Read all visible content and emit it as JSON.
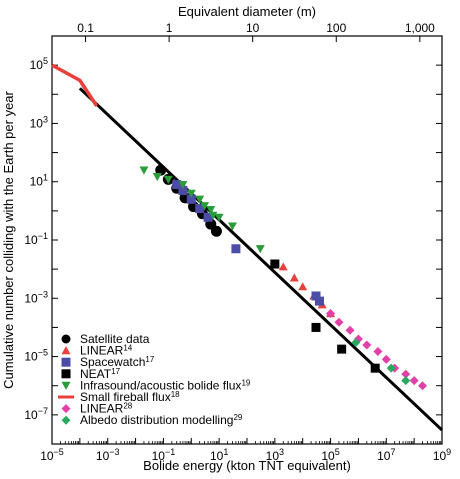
{
  "chart_data": {
    "type": "scatter",
    "xlabel": "Bolide energy (kton TNT equivalent)",
    "ylabel": "Cumulative number colliding with the Earth per year",
    "top_xlabel": "Equivalent diameter (m)",
    "xscale": "log",
    "yscale": "log",
    "xlim": [
      1e-05,
      1000000000.0
    ],
    "ylim": [
      1e-08,
      1000000.0
    ],
    "x_ticks": [
      {
        "value": 1e-05,
        "base": "10",
        "exp": "−5"
      },
      {
        "value": 0.001,
        "base": "10",
        "exp": "−3"
      },
      {
        "value": 0.1,
        "base": "10",
        "exp": "−1"
      },
      {
        "value": 10.0,
        "base": "10",
        "exp": "1"
      },
      {
        "value": 1000.0,
        "base": "10",
        "exp": "3"
      },
      {
        "value": 100000.0,
        "base": "10",
        "exp": "5"
      },
      {
        "value": 10000000.0,
        "base": "10",
        "exp": "7"
      },
      {
        "value": 1000000000.0,
        "base": "10",
        "exp": "9"
      }
    ],
    "y_ticks": [
      {
        "value": 100000.0,
        "base": "10",
        "exp": "5"
      },
      {
        "value": 1000.0,
        "base": "10",
        "exp": "3"
      },
      {
        "value": 10.0,
        "base": "10",
        "exp": "1"
      },
      {
        "value": 0.1,
        "base": "10",
        "exp": "−1"
      },
      {
        "value": 0.001,
        "base": "10",
        "exp": "−3"
      },
      {
        "value": 1e-05,
        "base": "10",
        "exp": "−5"
      },
      {
        "value": 1e-07,
        "base": "10",
        "exp": "−7"
      }
    ],
    "top_ticks": [
      {
        "label": "0.1",
        "energy": 0.00016
      },
      {
        "label": "1",
        "energy": 0.16
      },
      {
        "label": "10",
        "energy": 160
      },
      {
        "label": "100",
        "energy": 160000.0
      },
      {
        "label": "1,000",
        "energy": 160000000.0
      }
    ],
    "fit_line": {
      "x": [
        0.0001,
        1000000000.0
      ],
      "y": [
        16000.0,
        3e-08
      ]
    },
    "legend_position": "bottom-left",
    "series": [
      {
        "name": "Satellite data",
        "sup": "",
        "marker": "circle",
        "color": "#000000",
        "points": [
          [
            0.08,
            25
          ],
          [
            0.15,
            12
          ],
          [
            0.3,
            6
          ],
          [
            0.6,
            2.8
          ],
          [
            1.2,
            1.4
          ],
          [
            2.5,
            0.8
          ],
          [
            5,
            0.35
          ],
          [
            8,
            0.2
          ]
        ]
      },
      {
        "name": "LINEAR",
        "sup": "14",
        "marker": "triangle-up",
        "color": "#e8403a",
        "points": [
          [
            2000.0,
            0.012
          ],
          [
            5000.0,
            0.005
          ],
          [
            10000.0,
            0.0025
          ],
          [
            25000.0,
            0.0012
          ],
          [
            50000.0,
            0.0006
          ],
          [
            100000.0,
            0.0003
          ]
        ]
      },
      {
        "name": "Spacewatch",
        "sup": "17",
        "marker": "square",
        "color": "#4b4ba8",
        "points": [
          [
            0.3,
            8
          ],
          [
            0.5,
            5
          ],
          [
            1,
            2.5
          ],
          [
            2,
            1.2
          ],
          [
            4,
            0.6
          ],
          [
            40,
            0.05
          ],
          [
            30000.0,
            0.0012
          ],
          [
            40000.0,
            0.0008
          ]
        ]
      },
      {
        "name": "NEAT",
        "sup": "17",
        "marker": "square",
        "color": "#000000",
        "points": [
          [
            1000.0,
            0.015
          ],
          [
            30000.0,
            0.0001
          ],
          [
            250000.0,
            1.8e-05
          ],
          [
            4000000.0,
            4e-06
          ]
        ]
      },
      {
        "name": "Infrasound/acoustic bolide flux",
        "sup": "19",
        "marker": "triangle-down",
        "color": "#2a9d3a",
        "points": [
          [
            0.02,
            25
          ],
          [
            0.06,
            15
          ],
          [
            0.15,
            12
          ],
          [
            0.5,
            8
          ],
          [
            1,
            4
          ],
          [
            2,
            2.5
          ],
          [
            3,
            1.5
          ],
          [
            5,
            1.1
          ],
          [
            6,
            0.7
          ],
          [
            10,
            0.6
          ],
          [
            30,
            0.3
          ],
          [
            300,
            0.05
          ]
        ]
      },
      {
        "name": "Small fireball flux",
        "sup": "18",
        "marker": "line",
        "color": "#e8403a",
        "points": [
          [
            1e-05,
            100000.0
          ],
          [
            0.0001,
            30000.0
          ],
          [
            0.0004,
            4000.0
          ]
        ]
      },
      {
        "name": "LINEAR",
        "sup": "28",
        "marker": "diamond",
        "color": "#e040a8",
        "points": [
          [
            100000.0,
            0.0003
          ],
          [
            200000.0,
            0.00015
          ],
          [
            500000.0,
            8e-05
          ],
          [
            1000000.0,
            4e-05
          ],
          [
            2000000.0,
            2.5e-05
          ],
          [
            5000000.0,
            1.5e-05
          ],
          [
            10000000.0,
            8e-06
          ],
          [
            20000000.0,
            4e-06
          ],
          [
            50000000.0,
            2.5e-06
          ],
          [
            100000000.0,
            1.5e-06
          ],
          [
            200000000.0,
            1e-06
          ]
        ]
      },
      {
        "name": "Albedo distribution modelling",
        "sup": "29",
        "marker": "diamond",
        "color": "#2aa860",
        "points": [
          [
            800000.0,
            3e-05
          ],
          [
            15000000.0,
            4e-06
          ],
          [
            50000000.0,
            1.5e-06
          ]
        ]
      }
    ]
  }
}
